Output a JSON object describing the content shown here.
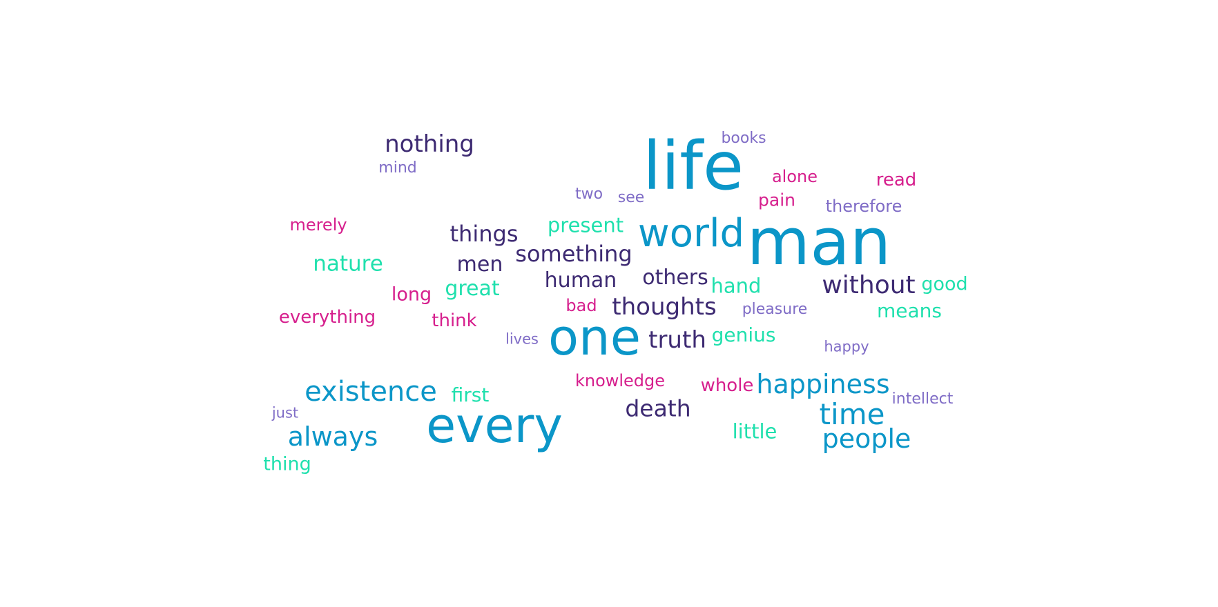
{
  "chart_data": {
    "type": "wordcloud",
    "title": "",
    "palette": {
      "blue": "#0b96c8",
      "navy": "#3d2a72",
      "teal": "#1fe0ad",
      "magenta": "#d61f8d",
      "lavender": "#7f6cc6"
    },
    "words": [
      {
        "text": "man",
        "color": "blue"
      },
      {
        "text": "life",
        "color": "blue"
      },
      {
        "text": "one",
        "color": "blue"
      },
      {
        "text": "every",
        "color": "blue"
      },
      {
        "text": "world",
        "color": "blue"
      },
      {
        "text": "happiness",
        "color": "blue"
      },
      {
        "text": "existence",
        "color": "blue"
      },
      {
        "text": "time",
        "color": "blue"
      },
      {
        "text": "people",
        "color": "blue"
      },
      {
        "text": "always",
        "color": "blue"
      },
      {
        "text": "nothing",
        "color": "navy"
      },
      {
        "text": "without",
        "color": "navy"
      },
      {
        "text": "something",
        "color": "navy"
      },
      {
        "text": "things",
        "color": "navy"
      },
      {
        "text": "thoughts",
        "color": "navy"
      },
      {
        "text": "truth",
        "color": "navy"
      },
      {
        "text": "death",
        "color": "navy"
      },
      {
        "text": "human",
        "color": "navy"
      },
      {
        "text": "others",
        "color": "navy"
      },
      {
        "text": "men",
        "color": "navy"
      },
      {
        "text": "nature",
        "color": "teal"
      },
      {
        "text": "great",
        "color": "teal"
      },
      {
        "text": "present",
        "color": "teal"
      },
      {
        "text": "hand",
        "color": "teal"
      },
      {
        "text": "good",
        "color": "teal"
      },
      {
        "text": "genius",
        "color": "teal"
      },
      {
        "text": "means",
        "color": "teal"
      },
      {
        "text": "first",
        "color": "teal"
      },
      {
        "text": "little",
        "color": "teal"
      },
      {
        "text": "thing",
        "color": "teal"
      },
      {
        "text": "everything",
        "color": "magenta"
      },
      {
        "text": "merely",
        "color": "magenta"
      },
      {
        "text": "long",
        "color": "magenta"
      },
      {
        "text": "think",
        "color": "magenta"
      },
      {
        "text": "bad",
        "color": "magenta"
      },
      {
        "text": "knowledge",
        "color": "magenta"
      },
      {
        "text": "whole",
        "color": "magenta"
      },
      {
        "text": "alone",
        "color": "magenta"
      },
      {
        "text": "pain",
        "color": "magenta"
      },
      {
        "text": "read",
        "color": "magenta"
      },
      {
        "text": "books",
        "color": "lavender"
      },
      {
        "text": "mind",
        "color": "lavender"
      },
      {
        "text": "two",
        "color": "lavender"
      },
      {
        "text": "see",
        "color": "lavender"
      },
      {
        "text": "therefore",
        "color": "lavender"
      },
      {
        "text": "pleasure",
        "color": "lavender"
      },
      {
        "text": "lives",
        "color": "lavender"
      },
      {
        "text": "happy",
        "color": "lavender"
      },
      {
        "text": "intellect",
        "color": "lavender"
      },
      {
        "text": "just",
        "color": "lavender"
      }
    ]
  }
}
